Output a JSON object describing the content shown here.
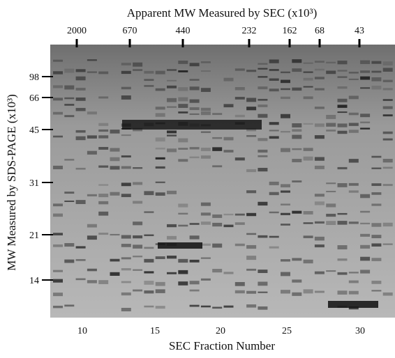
{
  "figure": {
    "top_title": "Apparent MW Measured by SEC (x10³)",
    "top_ticks": [
      "2000",
      "670",
      "440",
      "232",
      "162",
      "68",
      "43"
    ],
    "left_title": "MW Measured by SDS-PAGE (x10³)",
    "left_ticks": [
      "98",
      "66",
      "45",
      "31",
      "21",
      "14"
    ],
    "bottom_ticks": [
      "10",
      "15",
      "20",
      "25",
      "30"
    ],
    "bottom_title": "SEC Fraction Number"
  }
}
